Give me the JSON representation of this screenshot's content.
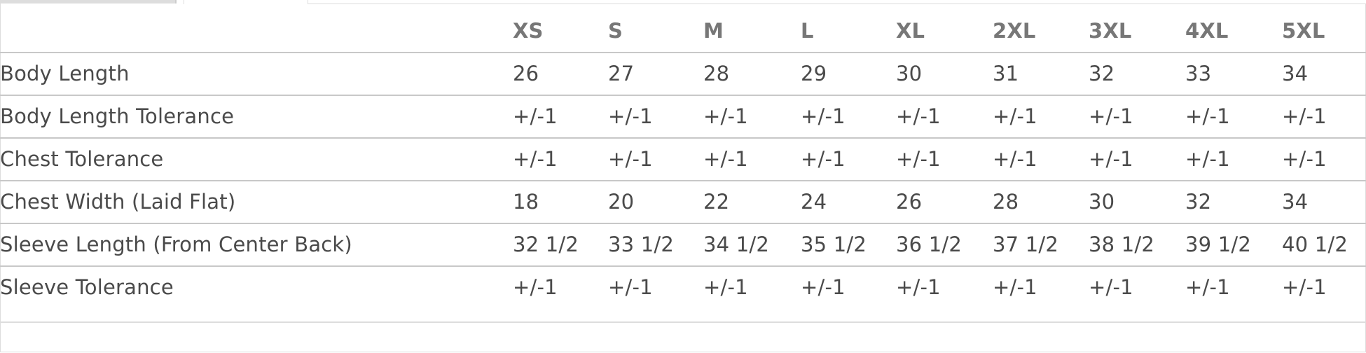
{
  "table": {
    "sizes": [
      "XS",
      "S",
      "M",
      "L",
      "XL",
      "2XL",
      "3XL",
      "4XL",
      "5XL"
    ],
    "rows": [
      {
        "label": "Body Length",
        "values": [
          "26",
          "27",
          "28",
          "29",
          "30",
          "31",
          "32",
          "33",
          "34"
        ]
      },
      {
        "label": "Body Length Tolerance",
        "values": [
          "+/-1",
          "+/-1",
          "+/-1",
          "+/-1",
          "+/-1",
          "+/-1",
          "+/-1",
          "+/-1",
          "+/-1"
        ]
      },
      {
        "label": "Chest Tolerance",
        "values": [
          "+/-1",
          "+/-1",
          "+/-1",
          "+/-1",
          "+/-1",
          "+/-1",
          "+/-1",
          "+/-1",
          "+/-1"
        ]
      },
      {
        "label": "Chest Width (Laid Flat)",
        "values": [
          "18",
          "20",
          "22",
          "24",
          "26",
          "28",
          "30",
          "32",
          "34"
        ]
      },
      {
        "label": "Sleeve Length (From Center Back)",
        "values": [
          "32 1/2",
          "33 1/2",
          "34 1/2",
          "35 1/2",
          "36 1/2",
          "37 1/2",
          "38 1/2",
          "39 1/2",
          "40 1/2"
        ]
      },
      {
        "label": "Sleeve Tolerance",
        "values": [
          "+/-1",
          "+/-1",
          "+/-1",
          "+/-1",
          "+/-1",
          "+/-1",
          "+/-1",
          "+/-1",
          "+/-1"
        ]
      }
    ]
  },
  "colors": {
    "text": "#4a4a4a",
    "header": "#777777",
    "rule": "#c8c8c8"
  }
}
